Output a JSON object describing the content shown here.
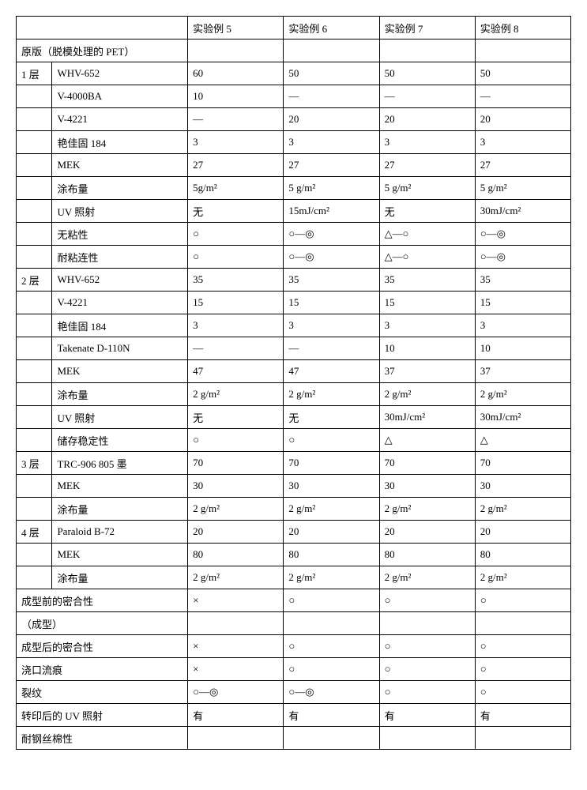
{
  "headers": {
    "c5": "实验例 5",
    "c6": "实验例 6",
    "c7": "实验例 7",
    "c8": "实验例 8"
  },
  "section_labels": {
    "original": "原版（脱模处理的 PET）",
    "layer1": "1 层",
    "layer2": "2 层",
    "layer3": "3 层",
    "layer4": "4 层",
    "adhesion_before": "成型前的密合性",
    "molding": "（成型）",
    "adhesion_after": "成型后的密合性",
    "gate_mark": "浇口流痕",
    "crack": "裂纹",
    "uv_after_transfer": "转印后的 UV 照射",
    "steel_wool": "耐钢丝棉性"
  },
  "rowlabels": {
    "whv652": "WHV-652",
    "v4000ba": "V-4000BA",
    "v4221": "V-4221",
    "irg184": "艳佳固 184",
    "mek": "MEK",
    "coat": "涂布量",
    "uv": "UV 照射",
    "tackfree": "无粘性",
    "blocking": "耐粘连性",
    "takenate": "Takenate D-110N",
    "storage": "储存稳定性",
    "trc": "TRC-906 805 墨",
    "paraloid": "Paraloid B-72"
  },
  "L1": {
    "whv652": {
      "c5": "60",
      "c6": "50",
      "c7": "50",
      "c8": "50"
    },
    "v4000ba": {
      "c5": "10",
      "c6": "—",
      "c7": "—",
      "c8": "—"
    },
    "v4221": {
      "c5": "—",
      "c6": "20",
      "c7": "20",
      "c8": "20"
    },
    "irg184": {
      "c5": "3",
      "c6": "3",
      "c7": "3",
      "c8": "3"
    },
    "mek": {
      "c5": "27",
      "c6": "27",
      "c7": "27",
      "c8": "27"
    },
    "coat": {
      "c5": "5g/m²",
      "c6": "5 g/m²",
      "c7": "5 g/m²",
      "c8": "5 g/m²"
    },
    "uv": {
      "c5": "无",
      "c6": "15mJ/cm²",
      "c7": "无",
      "c8": "30mJ/cm²"
    },
    "tackfree": {
      "c5": "○",
      "c6": "○—◎",
      "c7": "△—○",
      "c8": "○—◎"
    },
    "blocking": {
      "c5": "○",
      "c6": "○—◎",
      "c7": "△—○",
      "c8": "○—◎"
    }
  },
  "L2": {
    "whv652": {
      "c5": "35",
      "c6": "35",
      "c7": "35",
      "c8": "35"
    },
    "v4221": {
      "c5": "15",
      "c6": "15",
      "c7": "15",
      "c8": "15"
    },
    "irg184": {
      "c5": "3",
      "c6": "3",
      "c7": "3",
      "c8": "3"
    },
    "takenate": {
      "c5": "—",
      "c6": "—",
      "c7": "10",
      "c8": "10"
    },
    "mek": {
      "c5": "47",
      "c6": "47",
      "c7": "37",
      "c8": "37"
    },
    "coat": {
      "c5": "2 g/m²",
      "c6": "2 g/m²",
      "c7": "2 g/m²",
      "c8": "2 g/m²"
    },
    "uv": {
      "c5": "无",
      "c6": "无",
      "c7": "30mJ/cm²",
      "c8": "30mJ/cm²"
    },
    "storage": {
      "c5": "○",
      "c6": "○",
      "c7": "△",
      "c8": "△"
    }
  },
  "L3": {
    "trc": {
      "c5": "70",
      "c6": "70",
      "c7": "70",
      "c8": "70"
    },
    "mek": {
      "c5": "30",
      "c6": "30",
      "c7": "30",
      "c8": "30"
    },
    "coat": {
      "c5": "2 g/m²",
      "c6": "2 g/m²",
      "c7": "2 g/m²",
      "c8": "2 g/m²"
    }
  },
  "L4": {
    "paraloid": {
      "c5": "20",
      "c6": "20",
      "c7": "20",
      "c8": "20"
    },
    "mek": {
      "c5": "80",
      "c6": "80",
      "c7": "80",
      "c8": "80"
    },
    "coat": {
      "c5": "2 g/m²",
      "c6": "2 g/m²",
      "c7": "2 g/m²",
      "c8": "2 g/m²"
    }
  },
  "results": {
    "adhesion_before": {
      "c5": "×",
      "c6": "○",
      "c7": "○",
      "c8": "○"
    },
    "adhesion_after": {
      "c5": "×",
      "c6": "○",
      "c7": "○",
      "c8": "○"
    },
    "gate_mark": {
      "c5": "×",
      "c6": "○",
      "c7": "○",
      "c8": "○"
    },
    "crack": {
      "c5": "○—◎",
      "c6": "○—◎",
      "c7": "○",
      "c8": "○"
    },
    "uv_after": {
      "c5": "有",
      "c6": "有",
      "c7": "有",
      "c8": "有"
    },
    "steel_wool": {
      "c5": "",
      "c6": "",
      "c7": "",
      "c8": ""
    }
  }
}
